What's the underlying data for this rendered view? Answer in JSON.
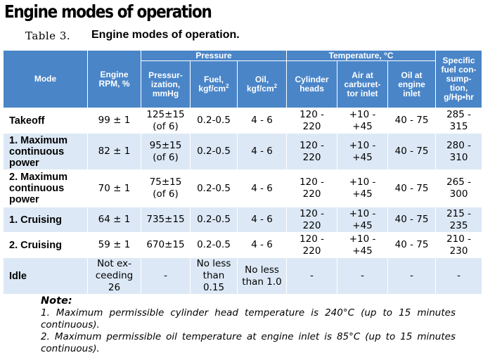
{
  "heading": "Engine modes of operation",
  "caption": {
    "number": "Table 3.",
    "title": "Engine modes of operation."
  },
  "table": {
    "headers": {
      "mode": "Mode",
      "rpm": "Engine RPM, %",
      "pressure": "Pressure",
      "pressurization": "Pressur-ization, mmHg",
      "fuel": "Fuel, kgf/cm",
      "oil": "Oil, kgf/cm",
      "power2": "2",
      "temperature": "Temperature, °C",
      "cyl_heads": "Cylinder heads",
      "air_inlet": "Air at carburet-tor inlet",
      "oil_inlet": "Oil at engine inlet",
      "sfc": "Specific fuel con-sump-tion, g/Hp•hr"
    },
    "rows": [
      {
        "mode": "Takeoff",
        "rpm": "99 ± 1",
        "press": "125±15",
        "press_note": "(of 6)",
        "fuel": "0.2-0.5",
        "oil": "4 - 6",
        "cyl_a": "120 -",
        "cyl_b": "220",
        "air_a": "+10 -",
        "air_b": "+45",
        "oil_inlet": "40 - 75",
        "sfc_a": "285 -",
        "sfc_b": "315"
      },
      {
        "mode": "1. Maximum continuous power",
        "rpm": "82 ± 1",
        "press": "95±15",
        "press_note": "(of 6)",
        "fuel": "0.2-0.5",
        "oil": "4 - 6",
        "cyl_a": "120 -",
        "cyl_b": "220",
        "air_a": "+10 -",
        "air_b": "+45",
        "oil_inlet": "40 - 75",
        "sfc_a": "280 -",
        "sfc_b": "310"
      },
      {
        "mode": "2. Maximum continuous power",
        "rpm": "70 ± 1",
        "press": "75±15",
        "press_note": "(of 6)",
        "fuel": "0.2-0.5",
        "oil": "4 - 6",
        "cyl_a": "120 -",
        "cyl_b": "220",
        "air_a": "+10 -",
        "air_b": "+45",
        "oil_inlet": "40 - 75",
        "sfc_a": "265 -",
        "sfc_b": "300"
      },
      {
        "mode": "1. Cruising",
        "rpm": "64 ± 1",
        "press": "735±15",
        "press_note": "",
        "fuel": "0.2-0.5",
        "oil": "4 - 6",
        "cyl_a": "120 -",
        "cyl_b": "220",
        "air_a": "+10 -",
        "air_b": "+45",
        "oil_inlet": "40 - 75",
        "sfc_a": "215 -",
        "sfc_b": "235"
      },
      {
        "mode": "2. Cruising",
        "rpm": "59 ± 1",
        "press": "670±15",
        "press_note": "",
        "fuel": "0.2-0.5",
        "oil": "4 - 6",
        "cyl_a": "120 -",
        "cyl_b": "220",
        "air_a": "+10 -",
        "air_b": "+45",
        "oil_inlet": "40 - 75",
        "sfc_a": "210 -",
        "sfc_b": "230"
      },
      {
        "mode": "Idle",
        "rpm": "Not ex-ceeding 26",
        "press": "-",
        "press_note": "",
        "fuel": "No less than 0.15",
        "oil": "No less than 1.0",
        "cyl_a": "-",
        "cyl_b": "",
        "air_a": "-",
        "air_b": "",
        "oil_inlet": "-",
        "sfc_a": "-",
        "sfc_b": ""
      }
    ]
  },
  "note": {
    "heading": "Note:",
    "lines": [
      "1. Maximum permissible cylinder head temperature is 240°C (up to 15 minutes continuous).",
      "2. Maximum permissible oil temperature at engine inlet is 85°C (up to 15 minutes continuous)."
    ]
  }
}
